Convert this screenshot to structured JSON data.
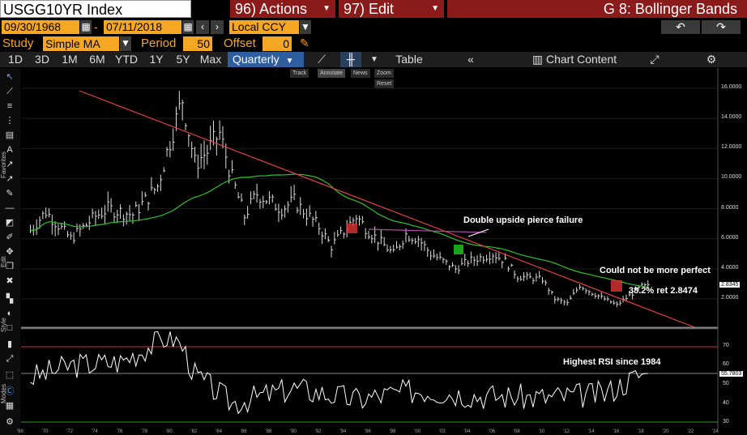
{
  "header": {
    "ticker": "USGG10YR Index",
    "actions_label": "96) Actions",
    "edit_label": "97) Edit",
    "title": "G 8: Bollinger Bands"
  },
  "date_range": {
    "start": "09/30/1968",
    "end": "07/11/2018",
    "separator": "-",
    "currency": "Local CCY"
  },
  "study": {
    "label": "Study",
    "type": "Simple MA",
    "period_label": "Period",
    "period": "50",
    "offset_label": "Offset",
    "offset": "0"
  },
  "tabs": [
    "1D",
    "3D",
    "1M",
    "6M",
    "YTD",
    "1Y",
    "5Y",
    "Max",
    "Quarterly",
    "Table",
    "Chart Content"
  ],
  "mini_toolbar": [
    "Track",
    "Annotate",
    "News",
    "Zoom",
    "Reset"
  ],
  "side_labels": [
    "Favorites",
    "Edit",
    "Style",
    "Modes"
  ],
  "annotations": {
    "pierce": "Double upside pierce failure",
    "perfect": "Could not be more perfect",
    "ret": "38.2% ret 2.8474",
    "rsi": "Highest RSI since 1984"
  },
  "price_axis": {
    "ticks": [
      "16.0000",
      "14.0000",
      "12.0000",
      "10.0000",
      "8.0000",
      "6.0000",
      "4.0000",
      "2.0000"
    ],
    "last": "2.8345"
  },
  "rsi_axis": {
    "ticks": [
      "70",
      "60",
      "50",
      "40",
      "30"
    ],
    "last": "55.7803"
  },
  "x_ticks": [
    "'68",
    "'70",
    "'72",
    "'74",
    "'76",
    "'78",
    "'80",
    "'82",
    "'84",
    "'86",
    "'88",
    "'90",
    "'92",
    "'94",
    "'96",
    "'98",
    "'00",
    "'02",
    "'04",
    "'06",
    "'08",
    "'10",
    "'12",
    "'14",
    "'16",
    "'18",
    "'20",
    "'22",
    "'24"
  ],
  "colors": {
    "accent_orange": "#f5a623",
    "header_red": "#8b1a1a",
    "active_tab": "#2f5e9e",
    "trendline": "#e04040",
    "ma_line": "#2fbf2f"
  },
  "chart_data": [
    {
      "type": "line",
      "ylim": [
        0,
        16.8
      ],
      "series_approx": {
        "x": [
          1968,
          1970,
          1972,
          1974,
          1975,
          1977,
          1979,
          1980,
          1981,
          1982,
          1983,
          1984,
          1985,
          1986,
          1987,
          1989,
          1990,
          1992,
          1993,
          1995,
          1996,
          1998,
          1999,
          2000,
          2001,
          2003,
          2004,
          2006,
          2007,
          2008,
          2010,
          2011,
          2012,
          2013,
          2014,
          2016,
          2018
        ],
        "y": [
          5.8,
          7.8,
          6.0,
          7.5,
          8.0,
          7.6,
          9.5,
          12.5,
          15.3,
          11.0,
          11.8,
          13.0,
          10.0,
          7.5,
          9.0,
          8.0,
          8.5,
          6.8,
          5.5,
          7.5,
          6.5,
          5.0,
          6.3,
          6.0,
          5.0,
          4.0,
          4.5,
          5.0,
          4.5,
          3.5,
          3.3,
          2.0,
          1.7,
          2.9,
          2.4,
          1.6,
          2.8345
        ]
      }
    },
    {
      "type": "line",
      "ylim": [
        25,
        78
      ],
      "series_approx": {
        "x": [
          1968,
          1972,
          1976,
          1980,
          1981,
          1982,
          1985,
          1990,
          1995,
          2000,
          2005,
          2010,
          2015,
          2018
        ],
        "y": [
          52,
          60,
          62,
          76,
          70,
          55,
          40,
          48,
          42,
          47,
          44,
          43,
          45,
          55.78
        ]
      }
    }
  ]
}
